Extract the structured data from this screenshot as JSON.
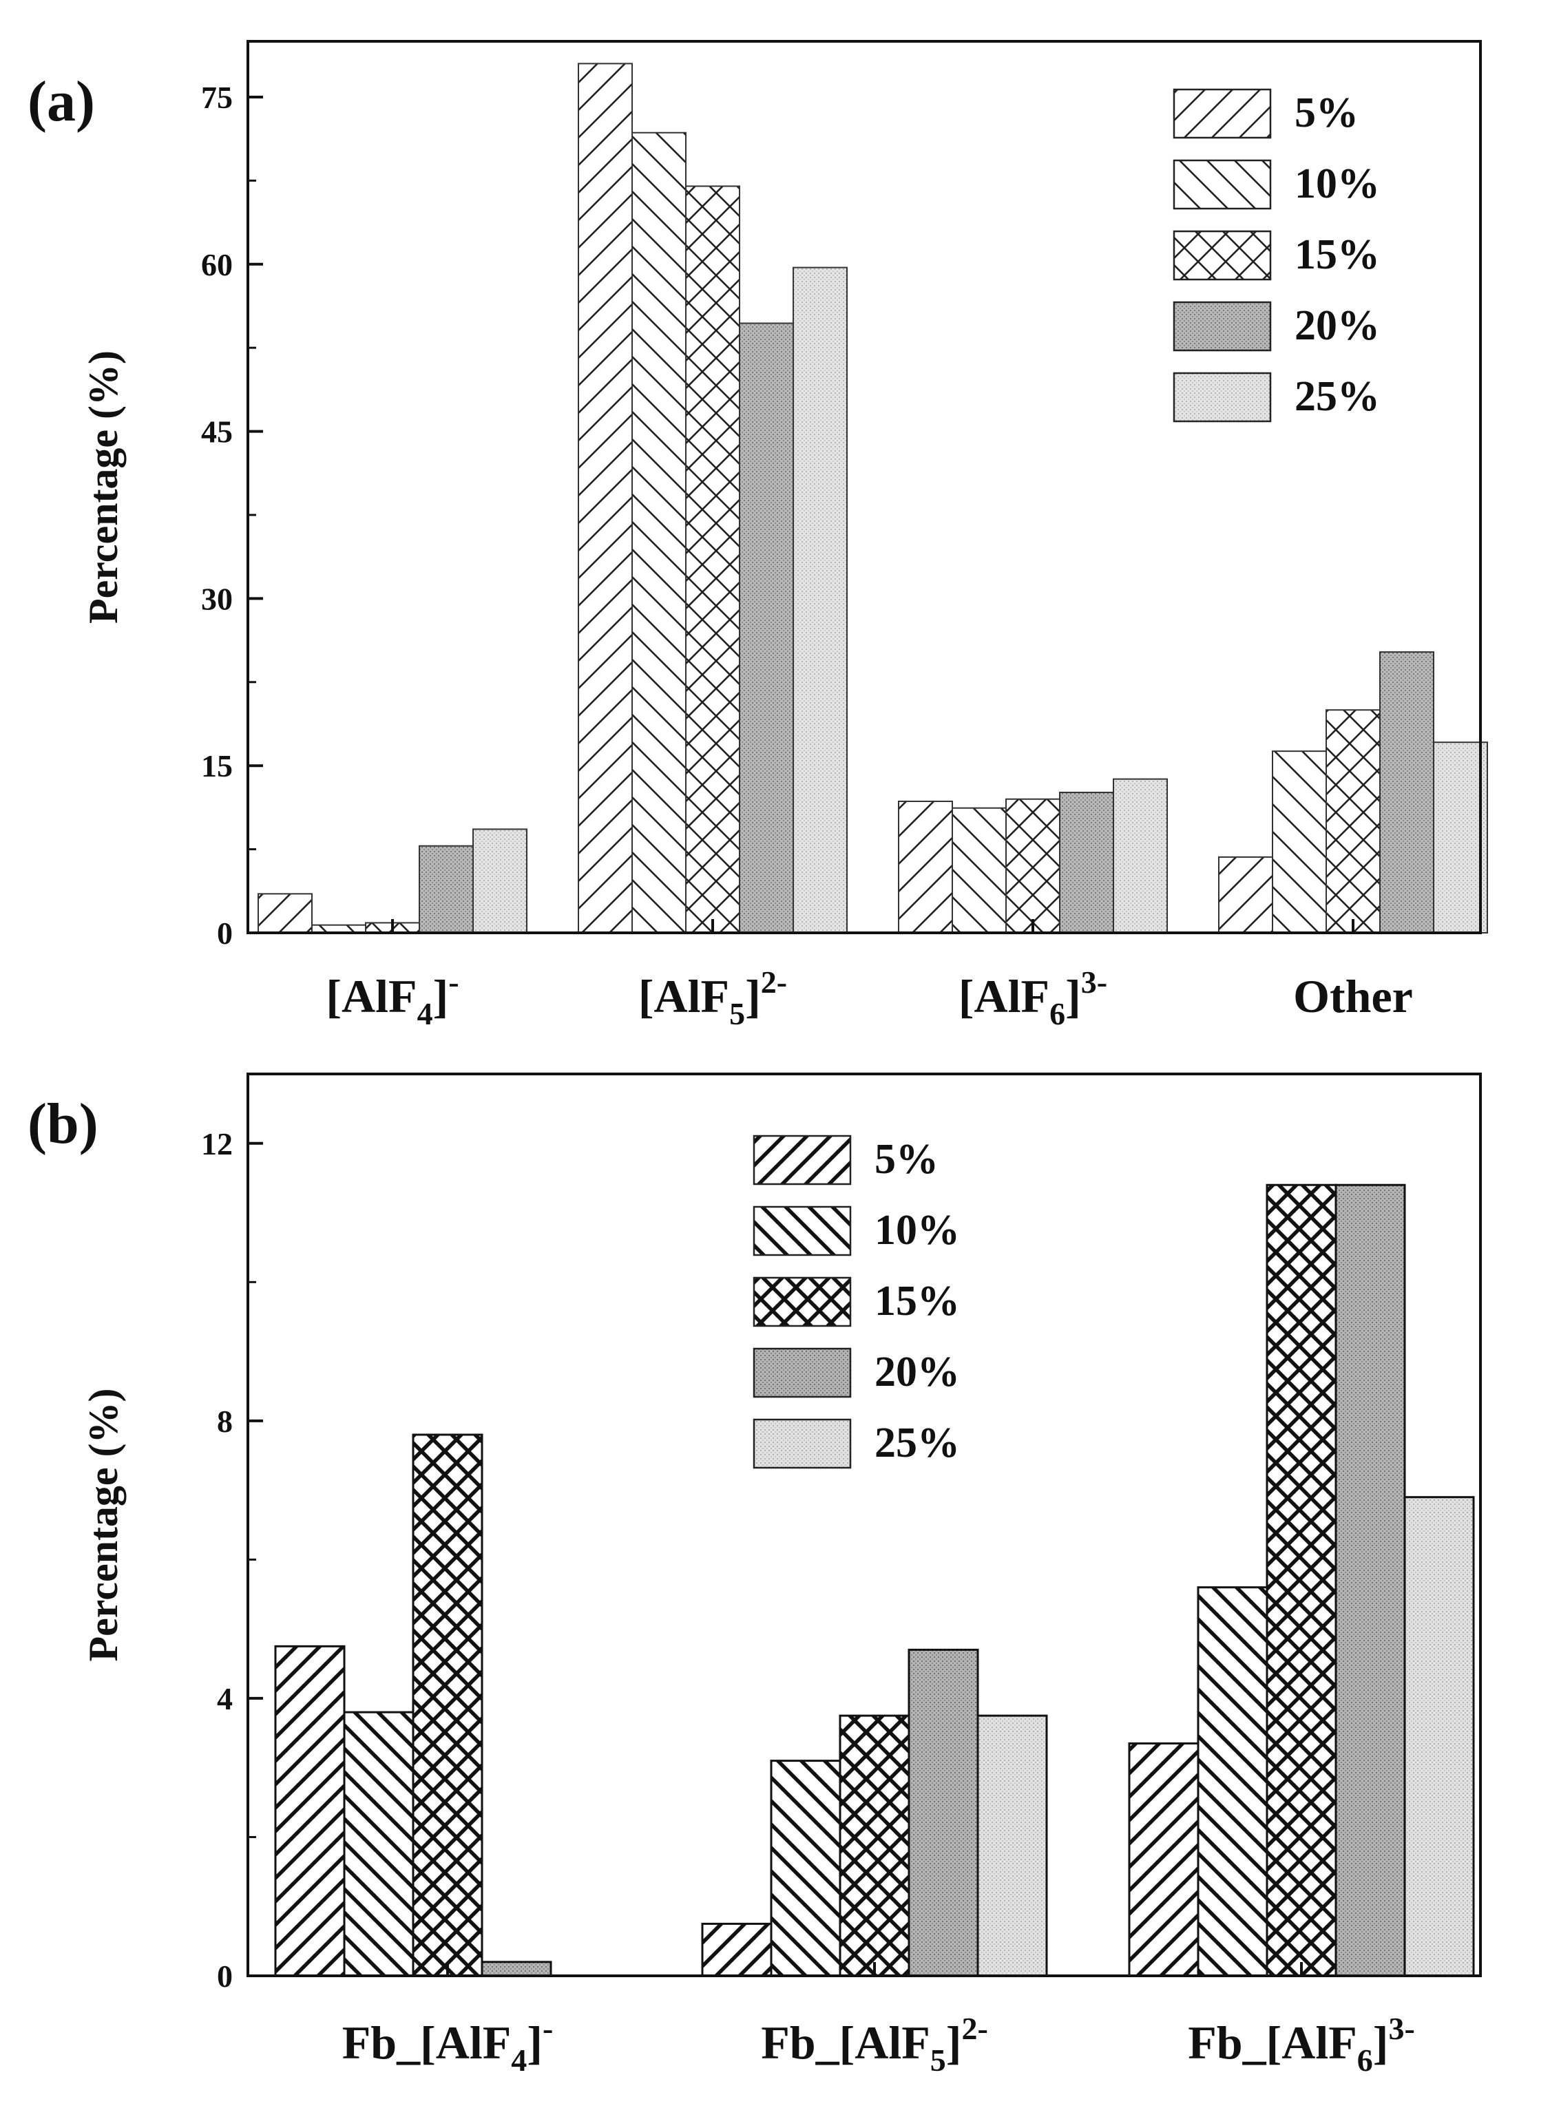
{
  "chart_data": [
    {
      "panel": "(a)",
      "type": "bar",
      "ylabel": "Percentage (%)",
      "ylim": [
        0,
        80
      ],
      "yticks": [
        "0",
        "15",
        "30",
        "45",
        "60",
        "75"
      ],
      "categories": [
        {
          "base": "[AlF",
          "sub": "4",
          "close": "]",
          "sup": "-"
        },
        {
          "base": "[AlF",
          "sub": "5",
          "close": "]",
          "sup": "2-"
        },
        {
          "base": "[AlF",
          "sub": "6",
          "close": "]",
          "sup": "3-"
        },
        {
          "base": "Other",
          "sub": "",
          "close": "",
          "sup": ""
        }
      ],
      "series": [
        {
          "name": "5%",
          "pattern": "diag-up",
          "values": [
            3.5,
            78,
            11.8,
            6.8
          ]
        },
        {
          "name": "10%",
          "pattern": "diag-down",
          "values": [
            0.7,
            71.8,
            11.2,
            16.3
          ]
        },
        {
          "name": "15%",
          "pattern": "cross",
          "values": [
            0.9,
            67,
            12,
            20
          ]
        },
        {
          "name": "20%",
          "pattern": "dots-dark",
          "values": [
            7.8,
            54.7,
            12.6,
            25.2
          ]
        },
        {
          "name": "25%",
          "pattern": "dots-light",
          "values": [
            9.3,
            59.7,
            13.8,
            17.1
          ]
        }
      ],
      "legend_position": "top-right"
    },
    {
      "panel": "(b)",
      "type": "bar",
      "ylabel": "Percentage (%)",
      "ylim": [
        0,
        13
      ],
      "yticks": [
        "0",
        "4",
        "8",
        "12"
      ],
      "categories": [
        {
          "base": "Fb_[AlF",
          "sub": "4",
          "close": "]",
          "sup": "-"
        },
        {
          "base": "Fb_[AlF",
          "sub": "5",
          "close": "]",
          "sup": "2-"
        },
        {
          "base": "Fb_[AlF",
          "sub": "6",
          "close": "]",
          "sup": "3-"
        }
      ],
      "series": [
        {
          "name": "5%",
          "pattern": "diag-up",
          "values": [
            4.75,
            0.75,
            3.35
          ]
        },
        {
          "name": "10%",
          "pattern": "diag-down",
          "values": [
            3.8,
            3.1,
            5.6
          ]
        },
        {
          "name": "15%",
          "pattern": "cross",
          "values": [
            7.8,
            3.75,
            11.4
          ]
        },
        {
          "name": "20%",
          "pattern": "dots-dark",
          "values": [
            0.2,
            4.7,
            11.4
          ]
        },
        {
          "name": "25%",
          "pattern": "dots-light",
          "values": [
            0,
            3.75,
            6.9
          ]
        }
      ],
      "legend_position": "top-center"
    }
  ]
}
